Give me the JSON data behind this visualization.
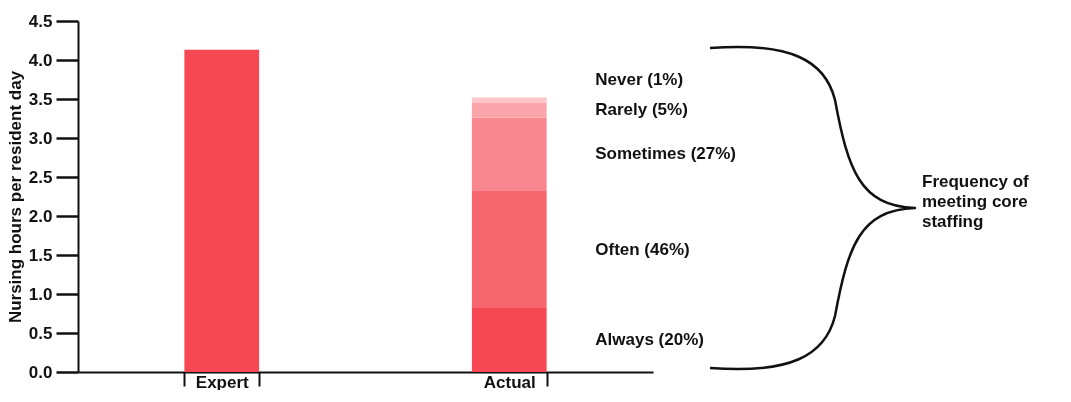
{
  "chart_data": {
    "type": "bar",
    "stacked": true,
    "ylabel": "Nursing hours per resident day",
    "categories": [
      "Expert",
      "Actual"
    ],
    "series": [
      {
        "color": "#f64853",
        "values": [
          4.13,
          null
        ]
      },
      {
        "name": "Always (20%)",
        "color": "#f64853",
        "values": [
          null,
          0.82
        ]
      },
      {
        "name": "Often (46%)",
        "color": "#f7656f",
        "values": [
          null,
          1.5
        ]
      },
      {
        "name": "Sometimes (27%)",
        "color": "#f98790",
        "values": [
          null,
          0.94
        ]
      },
      {
        "name": "Rarely (5%)",
        "color": "#fba5aa",
        "values": [
          null,
          0.19
        ]
      },
      {
        "name": "Never (1%)",
        "color": "#fcc5c8",
        "values": [
          null,
          0.07
        ]
      }
    ],
    "ylim": [
      0,
      4.5
    ],
    "yticks": [
      {
        "value": 0,
        "label": "0.0"
      },
      0.5,
      {
        "value": 1,
        "label": "1.0"
      },
      1.5,
      {
        "value": 2,
        "label": "2.0"
      },
      2.5,
      {
        "value": 3,
        "label": "3.0"
      },
      3.5,
      {
        "value": 4,
        "label": "4.0"
      },
      4.5
    ],
    "annotations": [
      "Frequency of meeting core staffing"
    ]
  }
}
